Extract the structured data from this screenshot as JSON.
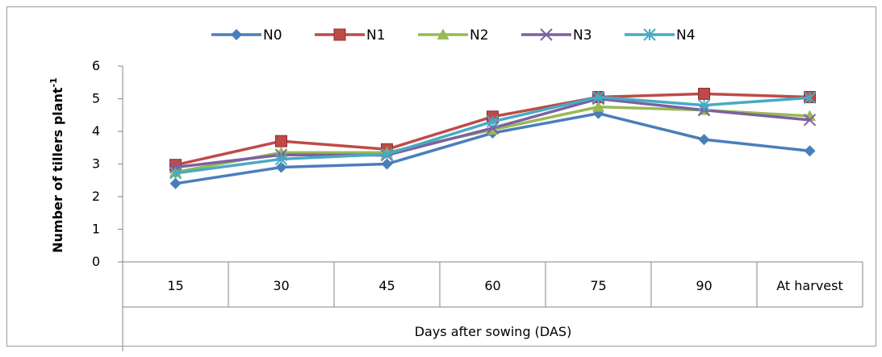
{
  "chart_data": {
    "type": "line",
    "categories": [
      "15",
      "30",
      "45",
      "60",
      "75",
      "90",
      "At harvest"
    ],
    "ylim": [
      0,
      6
    ],
    "yticks": [
      0,
      1,
      2,
      3,
      4,
      5,
      6
    ],
    "ylabel": "Number of tillers plant",
    "ylabel_sup": "-1",
    "xlabel": "Days after sowing (DAS)",
    "grid": false,
    "legend_position": "top-center",
    "series": [
      {
        "name": "N0",
        "color": "#4a7ebb",
        "marker": "diamond",
        "values": [
          2.4,
          2.9,
          3.0,
          3.95,
          4.55,
          3.75,
          3.4
        ]
      },
      {
        "name": "N1",
        "color": "#be4b48",
        "marker": "square",
        "values": [
          2.97,
          3.7,
          3.45,
          4.45,
          5.05,
          5.15,
          5.05
        ]
      },
      {
        "name": "N2",
        "color": "#98b954",
        "marker": "triangle",
        "values": [
          2.75,
          3.35,
          3.35,
          4.05,
          4.75,
          4.65,
          4.47
        ]
      },
      {
        "name": "N3",
        "color": "#7d60a0",
        "marker": "x",
        "values": [
          2.9,
          3.28,
          3.27,
          4.1,
          5.0,
          4.65,
          4.35
        ]
      },
      {
        "name": "N4",
        "color": "#46aac5",
        "marker": "star",
        "values": [
          2.72,
          3.15,
          3.3,
          4.3,
          5.05,
          4.8,
          5.03
        ]
      }
    ]
  }
}
